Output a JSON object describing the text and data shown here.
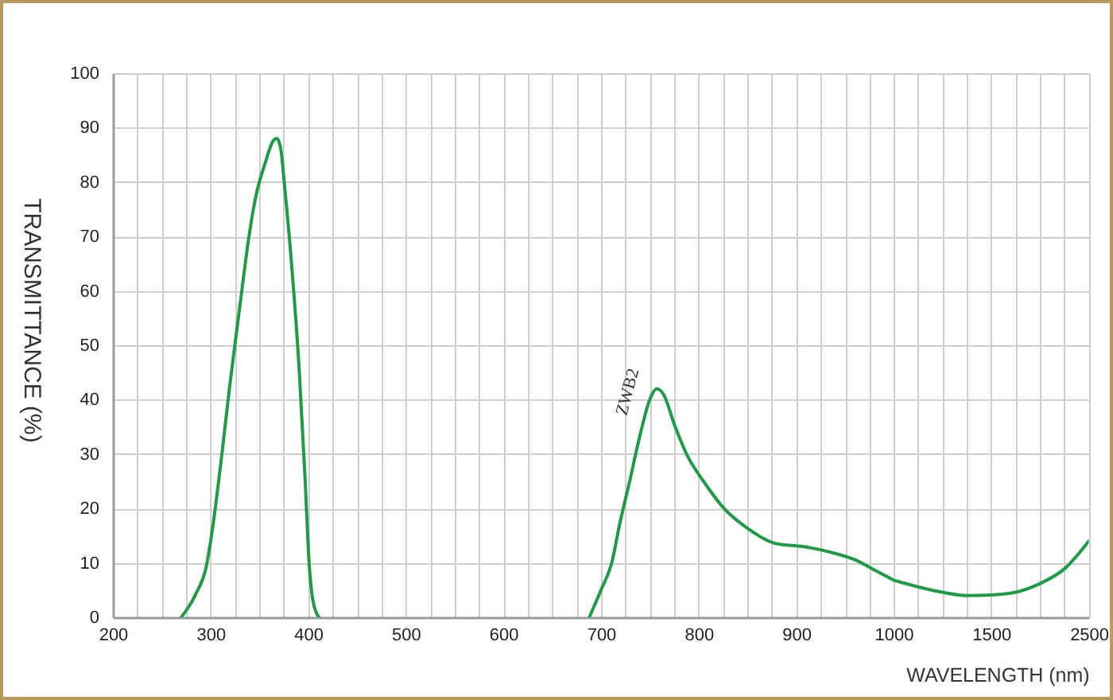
{
  "chart_data": [
    {
      "type": "line",
      "ylabel": "TRANSMITTANCE (%)",
      "x": [
        270,
        285,
        296,
        301,
        312,
        320,
        331,
        339,
        346,
        356,
        364,
        368,
        372,
        376,
        383,
        391,
        397,
        401,
        405,
        411,
        550,
        688,
        700,
        711,
        719,
        730,
        740,
        751,
        757,
        764,
        775,
        789,
        805,
        826,
        853,
        880,
        907,
        934,
        961,
        982,
        1000
      ],
      "series": [
        {
          "name": "ZWB2",
          "color": "#1f9a47",
          "values": [
            0,
            4.3,
            9.6,
            15,
            30.5,
            43,
            58.5,
            69.5,
            77,
            83.5,
            87.5,
            88,
            86,
            79,
            65,
            45,
            25,
            10,
            3,
            0,
            null,
            0,
            5,
            10,
            17,
            25.5,
            33.5,
            40.5,
            42,
            41,
            35.5,
            29.5,
            25,
            20,
            16,
            13.5,
            13,
            12,
            10.5,
            8.5,
            6.8
          ]
        }
      ],
      "xlim": [
        200,
        1000
      ],
      "xticks": [
        200,
        {
          "value": 225,
          "label": null
        },
        {
          "value": 250,
          "label": null
        },
        {
          "value": 275,
          "label": null
        },
        300,
        {
          "value": 325,
          "label": null
        },
        {
          "value": 350,
          "label": null
        },
        {
          "value": 375,
          "label": null
        },
        400,
        {
          "value": 425,
          "label": null
        },
        {
          "value": 450,
          "label": null
        },
        {
          "value": 475,
          "label": null
        },
        500,
        {
          "value": 525,
          "label": null
        },
        {
          "value": 550,
          "label": null
        },
        {
          "value": 575,
          "label": null
        },
        600,
        {
          "value": 625,
          "label": null
        },
        {
          "value": 650,
          "label": null
        },
        {
          "value": 675,
          "label": null
        },
        700,
        {
          "value": 725,
          "label": null
        },
        {
          "value": 750,
          "label": null
        },
        {
          "value": 775,
          "label": null
        },
        800,
        {
          "value": 825,
          "label": null
        },
        {
          "value": 850,
          "label": null
        },
        {
          "value": 875,
          "label": null
        },
        900,
        {
          "value": 925,
          "label": null
        },
        {
          "value": 950,
          "label": null
        },
        {
          "value": 975,
          "label": null
        }
      ],
      "ylim": [
        0,
        100
      ],
      "yticks": [
        0,
        10,
        20,
        30,
        40,
        50,
        60,
        70,
        80,
        90,
        100
      ],
      "grid": true
    },
    {
      "type": "line",
      "xlabel": "WAVELENGTH (nm)",
      "categories": [
        "1000",
        null,
        null,
        null,
        "1500",
        null,
        null,
        null,
        "2500"
      ],
      "series": [
        {
          "color": "#1f9a47",
          "values": [
            6.8,
            5.6,
            4.6,
            4,
            4.1,
            4.6,
            6.2,
            8.9,
            14
          ]
        }
      ],
      "ylim": [
        0,
        100
      ],
      "yticks": [
        0,
        10,
        20,
        30,
        40,
        50,
        60,
        70,
        80,
        90,
        100
      ],
      "grid": true,
      "tick_labels": "x"
    }
  ]
}
